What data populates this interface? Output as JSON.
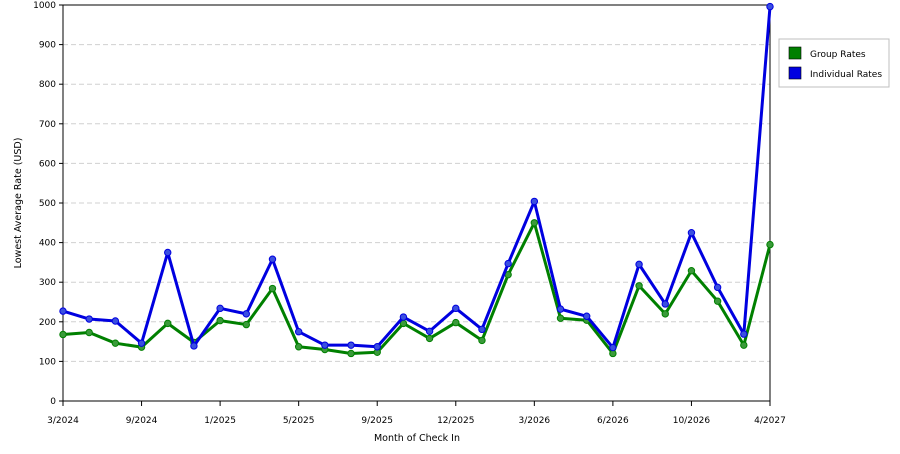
{
  "chart_data": {
    "type": "line",
    "xlabel": "Month of Check In",
    "ylabel": "Lowest Average Rate (USD)",
    "ylim": [
      0,
      1000
    ],
    "yticks": [
      0,
      100,
      200,
      300,
      400,
      500,
      600,
      700,
      800,
      900,
      1000
    ],
    "grid": "horizontal dashed",
    "legend_position": "right",
    "x_tick_labels": [
      "3/2024",
      "9/2024",
      "1/2025",
      "5/2025",
      "9/2025",
      "12/2025",
      "3/2026",
      "6/2026",
      "10/2026",
      "4/2027"
    ],
    "x_tick_positions": [
      0,
      3,
      6,
      9,
      12,
      15,
      18,
      21,
      24,
      27
    ],
    "point_count": 28,
    "series": [
      {
        "name": "Group Rates",
        "color": "#008000",
        "marker_color": "#3a9a3a",
        "values": [
          168,
          173,
          146,
          136,
          196,
          148,
          203,
          193,
          284,
          137,
          130,
          120,
          123,
          196,
          158,
          198,
          153,
          319,
          450,
          209,
          204,
          120,
          291,
          220,
          329,
          252,
          141,
          395
        ]
      },
      {
        "name": "Individual Rates",
        "color": "#0000e0",
        "marker_color": "#3a4fe0",
        "values": [
          227,
          207,
          202,
          146,
          375,
          139,
          234,
          220,
          358,
          175,
          141,
          141,
          137,
          212,
          176,
          234,
          181,
          347,
          504,
          232,
          214,
          135,
          345,
          245,
          425,
          287,
          169,
          996
        ]
      }
    ]
  }
}
